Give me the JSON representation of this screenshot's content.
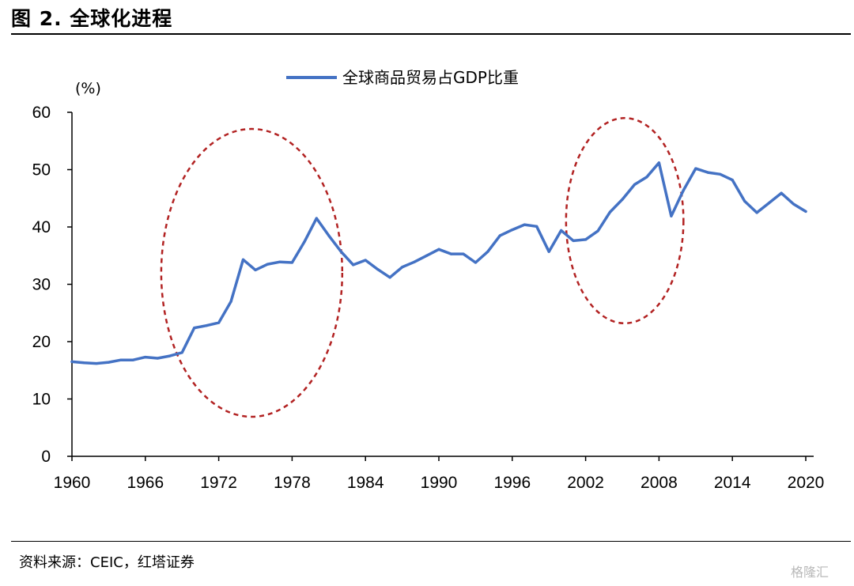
{
  "figure": {
    "title": "图 2. 全球化进程",
    "source": "资料来源：CEIC，红塔证券",
    "watermark": "格隆汇"
  },
  "chart_data": {
    "type": "line",
    "ylabel": "(%)",
    "ylim": [
      0,
      60
    ],
    "yticks": [
      0,
      10,
      20,
      30,
      40,
      50,
      60
    ],
    "xlim": [
      1960,
      2020
    ],
    "xticks": [
      1960,
      1966,
      1972,
      1978,
      1984,
      1990,
      1996,
      2002,
      2008,
      2014,
      2020
    ],
    "grid": false,
    "legend_position": "top-center",
    "series": [
      {
        "name": "全球商品贸易占GDP比重",
        "color": "#4472c4",
        "x": [
          1960,
          1961,
          1962,
          1963,
          1964,
          1965,
          1966,
          1967,
          1968,
          1969,
          1970,
          1971,
          1972,
          1973,
          1974,
          1975,
          1976,
          1977,
          1978,
          1979,
          1980,
          1981,
          1982,
          1983,
          1984,
          1985,
          1986,
          1987,
          1988,
          1989,
          1990,
          1991,
          1992,
          1993,
          1994,
          1995,
          1996,
          1997,
          1998,
          1999,
          2000,
          2001,
          2002,
          2003,
          2004,
          2005,
          2006,
          2007,
          2008,
          2009,
          2010,
          2011,
          2012,
          2013,
          2014,
          2015,
          2016,
          2017,
          2018,
          2019,
          2020
        ],
        "values": [
          16.5,
          16.3,
          16.2,
          16.4,
          16.8,
          16.8,
          17.3,
          17.1,
          17.5,
          18.1,
          22.4,
          22.8,
          23.3,
          27.0,
          34.3,
          32.5,
          33.5,
          33.9,
          33.8,
          37.4,
          41.5,
          38.5,
          35.7,
          33.4,
          34.2,
          32.6,
          31.2,
          33.0,
          33.9,
          35.0,
          36.1,
          35.3,
          35.3,
          33.8,
          35.7,
          38.5,
          39.5,
          40.4,
          40.1,
          35.7,
          39.4,
          37.6,
          37.8,
          39.3,
          42.6,
          44.8,
          47.4,
          48.7,
          51.2,
          41.9,
          46.4,
          50.2,
          49.5,
          49.2,
          48.2,
          44.5,
          42.5,
          44.2,
          45.9,
          44.0,
          42.7
        ]
      }
    ],
    "annotations": [
      {
        "type": "ellipse",
        "style": "dashed",
        "color": "#b22222",
        "x_center": 1974.7,
        "y_center": 32.0,
        "x_radius": 7.4,
        "y_radius": 25.1
      },
      {
        "type": "ellipse",
        "style": "dashed",
        "color": "#b22222",
        "x_center": 2005.2,
        "y_center": 41.1,
        "x_radius": 4.8,
        "y_radius": 17.9
      }
    ]
  }
}
